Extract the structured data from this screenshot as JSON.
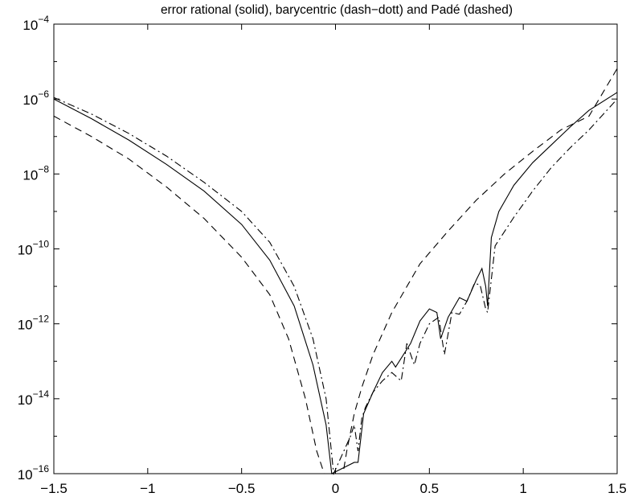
{
  "chart_data": {
    "type": "line",
    "title": "error rational (solid), barycentric (dash−dott) and Padé (dashed)",
    "xlabel": "",
    "ylabel": "",
    "xlim": [
      -1.5,
      1.5
    ],
    "ylim": [
      1e-16,
      0.0001
    ],
    "yscale": "log",
    "grid": false,
    "legend": "none",
    "xticks": [
      -1.5,
      -1,
      -0.5,
      0,
      0.5,
      1,
      1.5
    ],
    "xtick_labels": [
      "−1.5",
      "−1",
      "−0.5",
      "0",
      "0.5",
      "1",
      "1.5"
    ],
    "yticks": [
      1e-16,
      1e-14,
      1e-12,
      1e-10,
      1e-08,
      1e-06,
      0.0001
    ],
    "ytick_labels": [
      {
        "base": "10",
        "exp": "−16"
      },
      {
        "base": "10",
        "exp": "−14"
      },
      {
        "base": "10",
        "exp": "−12"
      },
      {
        "base": "10",
        "exp": "−10"
      },
      {
        "base": "10",
        "exp": "−8"
      },
      {
        "base": "10",
        "exp": "−6"
      },
      {
        "base": "10",
        "exp": "−4"
      }
    ],
    "series": [
      {
        "style": "solid",
        "x": [
          -1.5,
          -1.3,
          -1.1,
          -0.9,
          -0.7,
          -0.5,
          -0.35,
          -0.22,
          -0.12,
          -0.05,
          -0.02,
          0.1,
          0.12,
          0.15,
          0.2,
          0.25,
          0.3,
          0.32,
          0.4,
          0.45,
          0.5,
          0.54,
          0.56,
          0.6,
          0.66,
          0.7,
          0.75,
          0.78,
          0.8,
          0.81,
          0.83,
          0.87,
          0.95,
          1.05,
          1.15,
          1.25,
          1.35,
          1.5
        ],
        "y": [
          1e-06,
          3e-07,
          8e-08,
          1.8e-08,
          3.5e-09,
          4.5e-10,
          5e-11,
          3e-12,
          8e-14,
          2e-15,
          1e-16,
          2e-16,
          2e-16,
          4e-15,
          1.5e-14,
          5e-14,
          1e-13,
          7e-14,
          3e-13,
          1.2e-12,
          2.5e-12,
          2e-12,
          4e-13,
          1.5e-12,
          5e-12,
          4e-12,
          1.5e-11,
          3e-11,
          1e-11,
          3e-12,
          2e-10,
          1e-09,
          5e-09,
          2e-08,
          6e-08,
          1.8e-07,
          5e-07,
          1.5e-06
        ]
      },
      {
        "style": "dash-dot",
        "x": [
          -1.5,
          -1.3,
          -1.1,
          -0.9,
          -0.7,
          -0.5,
          -0.35,
          -0.22,
          -0.12,
          -0.05,
          -0.01,
          0.06,
          0.08,
          0.1,
          0.12,
          0.14,
          0.16,
          0.2,
          0.25,
          0.3,
          0.35,
          0.38,
          0.42,
          0.45,
          0.5,
          0.55,
          0.58,
          0.62,
          0.66,
          0.7,
          0.74,
          0.77,
          0.8,
          0.81,
          0.85,
          0.95,
          1.05,
          1.15,
          1.25,
          1.35,
          1.5
        ],
        "y": [
          1.1e-06,
          4e-07,
          1.2e-07,
          3e-08,
          6e-09,
          1e-09,
          1.5e-10,
          1e-11,
          4e-13,
          1e-14,
          1e-16,
          6e-16,
          1e-15,
          2e-15,
          4e-16,
          3e-15,
          6e-15,
          1.5e-14,
          3e-14,
          5e-14,
          3e-14,
          3e-13,
          8e-14,
          3e-13,
          1e-12,
          1.5e-12,
          1.5e-13,
          2e-12,
          1.8e-12,
          4e-12,
          1.2e-11,
          1.1e-11,
          2.5e-12,
          2e-12,
          1.2e-10,
          7e-10,
          3.5e-09,
          1.5e-08,
          5e-08,
          1.5e-07,
          1e-06
        ]
      },
      {
        "style": "dashed",
        "x": [
          -1.5,
          -1.3,
          -1.1,
          -0.9,
          -0.7,
          -0.5,
          -0.35,
          -0.25,
          -0.16,
          -0.1,
          -0.06,
          0.04,
          0.06,
          0.1,
          0.14,
          0.2,
          0.3,
          0.45,
          0.6,
          0.75,
          0.9,
          1.05,
          1.2,
          1.35,
          1.5
        ],
        "y": [
          3.5e-07,
          1e-07,
          2.5e-08,
          4.5e-09,
          6.5e-10,
          6e-11,
          6e-12,
          4e-13,
          1e-14,
          4e-16,
          1e-16,
          1e-16,
          4e-16,
          4e-15,
          2e-14,
          1.5e-13,
          2e-12,
          4e-11,
          3e-10,
          2e-09,
          1e-08,
          4e-08,
          1.5e-07,
          3.5e-07,
          6.5e-06
        ]
      }
    ]
  }
}
